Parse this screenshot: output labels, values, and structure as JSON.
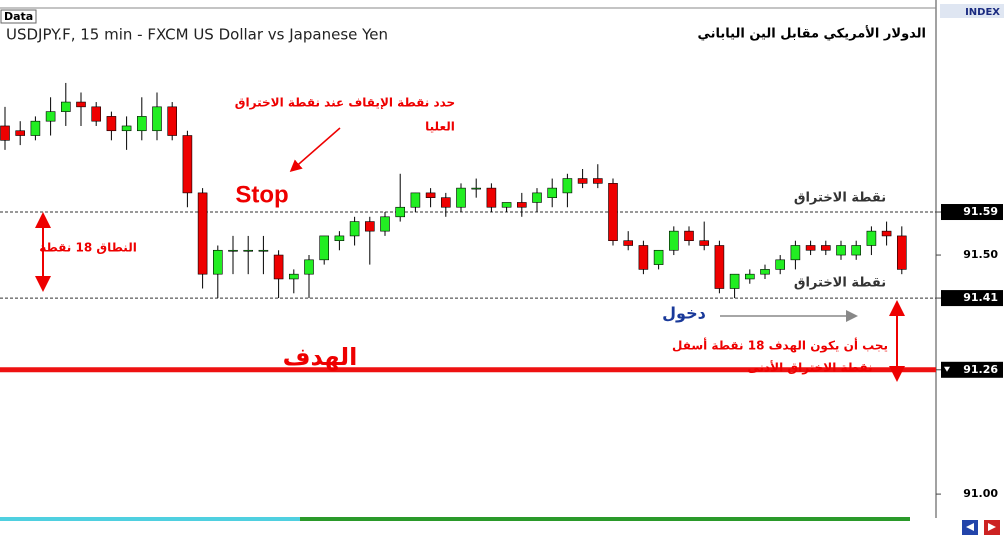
{
  "chart_data": {
    "type": "candlestick",
    "header_label": "Data",
    "title": "USDJPY.F, 15 min - FXCM US Dollar vs Japanese Yen",
    "title_arabic": "الدولار الأمريكي مقابل الين الياباني",
    "axis_label": "INDEX",
    "up_color": "#22ee22",
    "down_color": "#ee0000",
    "ylim": [
      90.95,
      92.0
    ],
    "yticks": [
      {
        "value": 91,
        "label": "91.00"
      },
      91.26,
      91.41,
      {
        "value": 91.5,
        "label": "91.50"
      },
      91.59
    ],
    "open": [
      91.77,
      91.76,
      91.75,
      91.78,
      91.8,
      91.82,
      91.81,
      91.79,
      91.76,
      91.76,
      91.76,
      91.81,
      91.75,
      91.63,
      91.46,
      91.51,
      91.51,
      91.51,
      91.5,
      91.45,
      91.46,
      91.49,
      91.53,
      91.54,
      91.57,
      91.55,
      91.58,
      91.6,
      91.63,
      91.62,
      91.6,
      91.64,
      91.64,
      91.6,
      91.61,
      91.61,
      91.62,
      91.63,
      91.66,
      91.66,
      91.65,
      91.53,
      91.52,
      91.48,
      91.51,
      91.55,
      91.53,
      91.52,
      91.43,
      91.45,
      91.46,
      91.47,
      91.49,
      91.52,
      91.52,
      91.5,
      91.5,
      91.52,
      91.55,
      91.54
    ],
    "high": [
      91.81,
      91.78,
      91.79,
      91.83,
      91.86,
      91.84,
      91.82,
      91.8,
      91.79,
      91.83,
      91.84,
      91.82,
      91.76,
      91.64,
      91.52,
      91.54,
      91.54,
      91.54,
      91.51,
      91.47,
      91.5,
      91.54,
      91.55,
      91.58,
      91.58,
      91.59,
      91.67,
      91.63,
      91.64,
      91.63,
      91.65,
      91.66,
      91.65,
      91.61,
      91.63,
      91.64,
      91.66,
      91.67,
      91.68,
      91.69,
      91.66,
      91.55,
      91.53,
      91.51,
      91.56,
      91.56,
      91.57,
      91.53,
      91.46,
      91.47,
      91.48,
      91.5,
      91.53,
      91.53,
      91.53,
      91.53,
      91.53,
      91.56,
      91.57,
      91.56
    ],
    "low": [
      91.72,
      91.73,
      91.74,
      91.75,
      91.77,
      91.77,
      91.77,
      91.74,
      91.72,
      91.74,
      91.74,
      91.74,
      91.6,
      91.43,
      91.41,
      91.46,
      91.46,
      91.46,
      91.41,
      91.42,
      91.41,
      91.48,
      91.51,
      91.52,
      91.48,
      91.54,
      91.57,
      91.59,
      91.6,
      91.58,
      91.59,
      91.62,
      91.59,
      91.59,
      91.58,
      91.59,
      91.6,
      91.6,
      91.64,
      91.64,
      91.52,
      91.51,
      91.46,
      91.47,
      91.5,
      91.52,
      91.51,
      91.42,
      91.41,
      91.44,
      91.45,
      91.46,
      91.47,
      91.5,
      91.5,
      91.49,
      91.49,
      91.5,
      91.52,
      91.46
    ],
    "close": [
      91.74,
      91.75,
      91.78,
      91.8,
      91.82,
      91.81,
      91.78,
      91.76,
      91.77,
      91.79,
      91.81,
      91.75,
      91.63,
      91.46,
      91.51,
      91.51,
      91.51,
      91.51,
      91.45,
      91.46,
      91.49,
      91.54,
      91.54,
      91.57,
      91.55,
      91.58,
      91.6,
      91.63,
      91.62,
      91.6,
      91.64,
      91.64,
      91.6,
      91.61,
      91.6,
      91.63,
      91.64,
      91.66,
      91.65,
      91.65,
      91.53,
      91.52,
      91.47,
      91.51,
      91.55,
      91.53,
      91.52,
      91.43,
      91.46,
      91.46,
      91.47,
      91.49,
      91.52,
      91.51,
      91.51,
      91.52,
      91.52,
      91.55,
      91.54,
      91.47
    ],
    "annotations": {
      "stop_note_1": "حدد نقطة الإيقاف عند نقطة الاختراق",
      "stop_note_2": "العليا",
      "stop": "Stop",
      "range": "النطاق 18 نقطة",
      "upper_breakout": "نقطة الاختراق",
      "lower_breakout": "نقطة الاختراق",
      "entry": "دخول",
      "target_note_1": "يجب أن يكون الهدف 18 نقطة أسفل",
      "target_note_2": "نقطة الاختراق الأدنى",
      "target": "الهدف"
    }
  }
}
